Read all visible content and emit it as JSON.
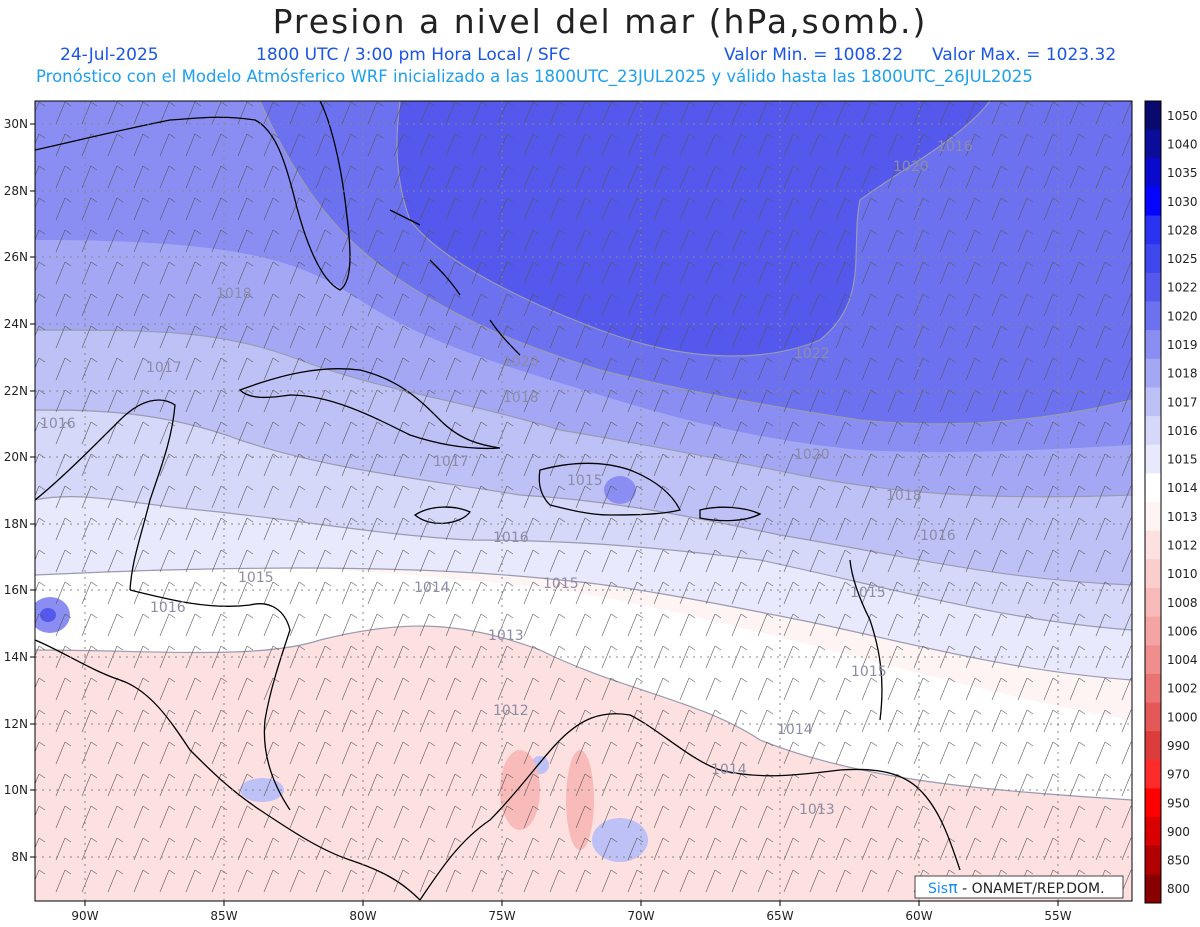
{
  "title": "Presion a nivel del mar (hPa,somb.)",
  "date": "24-Jul-2025",
  "time": "1800 UTC / 3:00 pm Hora Local / SFC",
  "value_min": "Valor Min. = 1008.22",
  "value_max": "Valor Max. = 1023.32",
  "forecast_note": "Pronóstico con el Modelo Atmósferico WRF inicializado a las 1800UTC_23JUL2025 y válido hasta las  1800UTC_26JUL2025",
  "lat_labels": [
    "30N",
    "28N",
    "26N",
    "24N",
    "22N",
    "20N",
    "18N",
    "16N",
    "14N",
    "12N",
    "10N",
    "8N"
  ],
  "lon_labels": [
    "90W",
    "85W",
    "80W",
    "75W",
    "70W",
    "65W",
    "60W",
    "55W"
  ],
  "colorbar_labels": [
    "1050",
    "1040",
    "1035",
    "1030",
    "1028",
    "1025",
    "1022",
    "1020",
    "1019",
    "1018",
    "1017",
    "1016",
    "1015",
    "1014",
    "1013",
    "1012",
    "1010",
    "1008",
    "1006",
    "1004",
    "1002",
    "1000",
    "990",
    "970",
    "950",
    "900",
    "850",
    "800"
  ],
  "colorbar_colors": [
    "#0a0a6e",
    "#0c0c9a",
    "#0a0acf",
    "#0505ff",
    "#2a32f2",
    "#3e46ee",
    "#5458ec",
    "#6c72ef",
    "#8a8ef2",
    "#a4a8f4",
    "#bec1f6",
    "#d6d8f9",
    "#e8e9fc",
    "#ffffff",
    "#fff4f4",
    "#fde0e0",
    "#fbcece",
    "#f9baba",
    "#f5a4a4",
    "#f08e8e",
    "#ea7474",
    "#e45858",
    "#dc3c3c",
    "#ff2a2a",
    "#ff0000",
    "#d80000",
    "#b00000",
    "#880000"
  ],
  "contour_labels": [
    "1020",
    "1016",
    "1022",
    "1018",
    "1017",
    "1016",
    "1020",
    "1018",
    "1020",
    "1017",
    "1015",
    "1018",
    "1016",
    "1016",
    "1015",
    "1014",
    "1015",
    "1013",
    "1016",
    "1015",
    "1015",
    "1012",
    "1014",
    "1014",
    "1013"
  ],
  "credit_brand": "Sis",
  "credit_pi": "π",
  "credit_org": " - ONAMET/REP.DOM."
}
